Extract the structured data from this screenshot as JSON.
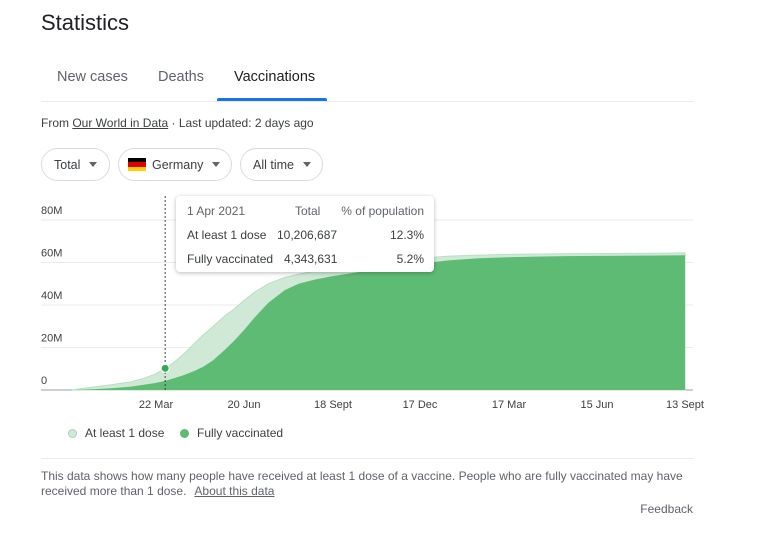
{
  "header": {
    "title": "Statistics"
  },
  "tabs": [
    {
      "label": "New cases"
    },
    {
      "label": "Deaths"
    },
    {
      "label": "Vaccinations"
    }
  ],
  "source": {
    "prefix": "From ",
    "link": "Our World in Data",
    "updated": " · Last updated: 2 days ago"
  },
  "filters": {
    "metric": "Total",
    "country": "Germany",
    "range": "All time"
  },
  "tooltip": {
    "date": "1 Apr 2021",
    "col_total": "Total",
    "col_pct": "% of population",
    "rows": [
      {
        "label": "At least 1 dose",
        "total": "10,206,687",
        "pct": "12.3%"
      },
      {
        "label": "Fully vaccinated",
        "total": "4,343,631",
        "pct": "5.2%"
      }
    ]
  },
  "legend": [
    {
      "label": "At least 1 dose",
      "color": "#cfe9d6"
    },
    {
      "label": "Fully vaccinated",
      "color": "#5ebb73"
    }
  ],
  "note": {
    "text": "This data shows how many people have received at least 1 dose of a vaccine. People who are fully vaccinated may have received more than 1 dose.",
    "link": "About this data"
  },
  "feedback": "Feedback",
  "chart_data": {
    "type": "area",
    "y_ticks": [
      "0",
      "20M",
      "40M",
      "60M",
      "80M"
    ],
    "x_ticks": [
      "22 Mar",
      "20 Jun",
      "18 Sept",
      "17 Dec",
      "17 Mar",
      "15 Jun",
      "13 Sept"
    ],
    "ylim": [
      0,
      80
    ],
    "y_unit": "M",
    "x": [
      "2020-12-27",
      "2021-01-15",
      "2021-02-05",
      "2021-02-25",
      "2021-03-10",
      "2021-03-22",
      "2021-04-01",
      "2021-04-10",
      "2021-04-20",
      "2021-05-01",
      "2021-05-10",
      "2021-05-20",
      "2021-06-01",
      "2021-06-10",
      "2021-06-20",
      "2021-07-01",
      "2021-07-15",
      "2021-08-01",
      "2021-08-15",
      "2021-09-01",
      "2021-09-18",
      "2021-10-15",
      "2021-11-15",
      "2021-12-17",
      "2022-01-15",
      "2022-02-15",
      "2022-03-17",
      "2022-04-15",
      "2022-05-15",
      "2022-06-15",
      "2022-07-15",
      "2022-08-15",
      "2022-09-13"
    ],
    "series": [
      {
        "name": "At least 1 dose",
        "color": "#cfe9d6",
        "values": [
          0,
          1.2,
          2.5,
          3.8,
          5.5,
          7.5,
          10.2,
          13,
          17,
          22,
          26,
          30,
          35,
          38,
          42,
          46,
          50,
          53,
          54.5,
          56,
          57,
          59,
          60.5,
          62,
          63,
          63.5,
          63.8,
          64,
          64.1,
          64.2,
          64.3,
          64.4,
          64.5
        ]
      },
      {
        "name": "Fully vaccinated",
        "color": "#5ebb73",
        "values": [
          0,
          0.3,
          0.8,
          1.6,
          2.5,
          3.3,
          4.3,
          5.5,
          7,
          9,
          11,
          14,
          19,
          23,
          28,
          34,
          41,
          47,
          50,
          52,
          53.5,
          55.5,
          57.5,
          59.5,
          61,
          62,
          62.5,
          62.8,
          63,
          63.1,
          63.2,
          63.3,
          63.4
        ]
      }
    ],
    "hover_date": "2021-04-01",
    "hover_value": 10.2
  }
}
